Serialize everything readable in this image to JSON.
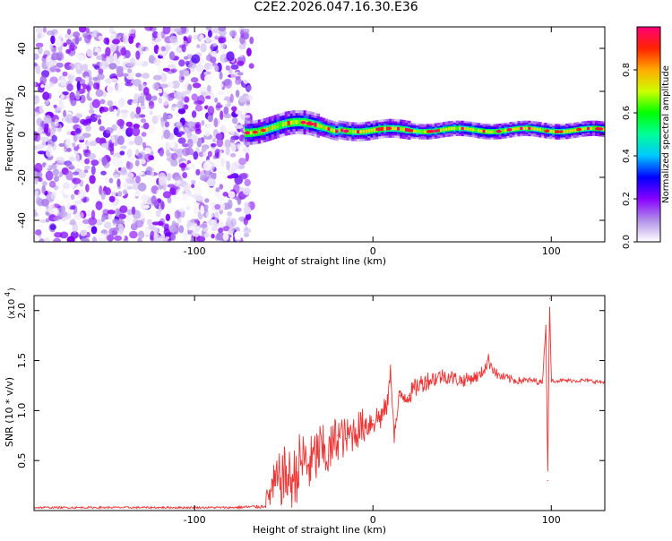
{
  "figure_title": "C2E2.2026.047.16.30.E36",
  "chart_data": [
    {
      "type": "heatmap",
      "name": "spectrogram",
      "xlabel": "Height of straight line (km)",
      "ylabel": "Frequency (Hz)",
      "xlim": [
        -190,
        130
      ],
      "ylim": [
        -50,
        50
      ],
      "xticks": [
        -100,
        0,
        100
      ],
      "xtick_labels": [
        "-100",
        "0",
        "100"
      ],
      "yticks": [
        -40,
        -20,
        0,
        20,
        40
      ],
      "ytick_labels": [
        "-40",
        "-20",
        "0",
        "20",
        "40"
      ],
      "grid": false,
      "description_regions": {
        "noise_region_x": [
          -190,
          -68
        ],
        "signal_band_x": [
          -72,
          130
        ],
        "signal_band_center_hz": 2,
        "signal_band_halfwidth_hz": 4
      },
      "colorbar": {
        "label": "Normalized spectral amplitude",
        "range": [
          0.0,
          1.0
        ],
        "ticks": [
          0.0,
          0.2,
          0.4,
          0.6,
          0.8
        ],
        "tick_labels": [
          "0.0",
          "0.2",
          "0.4",
          "0.6",
          "0.8"
        ],
        "colormap": [
          "#ffffff",
          "#b090e8",
          "#8800ff",
          "#0000ff",
          "#00c8ff",
          "#00ff99",
          "#00ff00",
          "#ccff00",
          "#ffaa00",
          "#ff2200",
          "#ff0077"
        ]
      }
    },
    {
      "type": "line",
      "name": "snr",
      "xlabel": "Height of straight line (km)",
      "ylabel": "SNR (10 * v/v)",
      "y_scale_label": "(x10",
      "y_scale_exp": "4",
      "y_scale_close": ")",
      "xlim": [
        -190,
        130
      ],
      "ylim": [
        0,
        2.15
      ],
      "xticks": [
        -100,
        0,
        100
      ],
      "xtick_labels": [
        "-100",
        "0",
        "100"
      ],
      "yticks": [
        0.5,
        1.0,
        1.5,
        2.0
      ],
      "ytick_labels": [
        "0.5",
        "1.0",
        "1.5",
        "2.0"
      ],
      "line_color": "#ee3333",
      "series": [
        {
          "name": "SNR",
          "x": [
            -190,
            -150,
            -100,
            -80,
            -62,
            -55,
            -50,
            -45,
            -40,
            -35,
            -30,
            -25,
            -20,
            -15,
            -10,
            -5,
            0,
            5,
            8,
            10,
            12,
            15,
            20,
            25,
            30,
            40,
            50,
            60,
            65,
            70,
            80,
            90,
            95,
            97,
            98,
            99,
            100,
            105,
            110,
            120,
            130
          ],
          "y": [
            0.03,
            0.03,
            0.03,
            0.03,
            0.04,
            0.25,
            0.35,
            0.3,
            0.5,
            0.45,
            0.6,
            0.55,
            0.75,
            0.72,
            0.8,
            0.85,
            0.9,
            0.95,
            1.05,
            1.4,
            0.75,
            1.15,
            1.15,
            1.25,
            1.3,
            1.35,
            1.3,
            1.35,
            1.5,
            1.35,
            1.3,
            1.3,
            1.28,
            1.85,
            0.3,
            2.12,
            1.3,
            1.3,
            1.3,
            1.3,
            1.28
          ],
          "noise_amplitude": [
            0.01,
            0.01,
            0.01,
            0.01,
            0.02,
            0.25,
            0.3,
            0.3,
            0.35,
            0.3,
            0.3,
            0.25,
            0.25,
            0.2,
            0.2,
            0.18,
            0.15,
            0.15,
            0.1,
            0.1,
            0.1,
            0.1,
            0.1,
            0.1,
            0.1,
            0.08,
            0.07,
            0.06,
            0.08,
            0.05,
            0.04,
            0.03,
            0.03,
            0.0,
            0.0,
            0.0,
            0.02,
            0.02,
            0.02,
            0.02,
            0.02
          ]
        }
      ]
    }
  ]
}
